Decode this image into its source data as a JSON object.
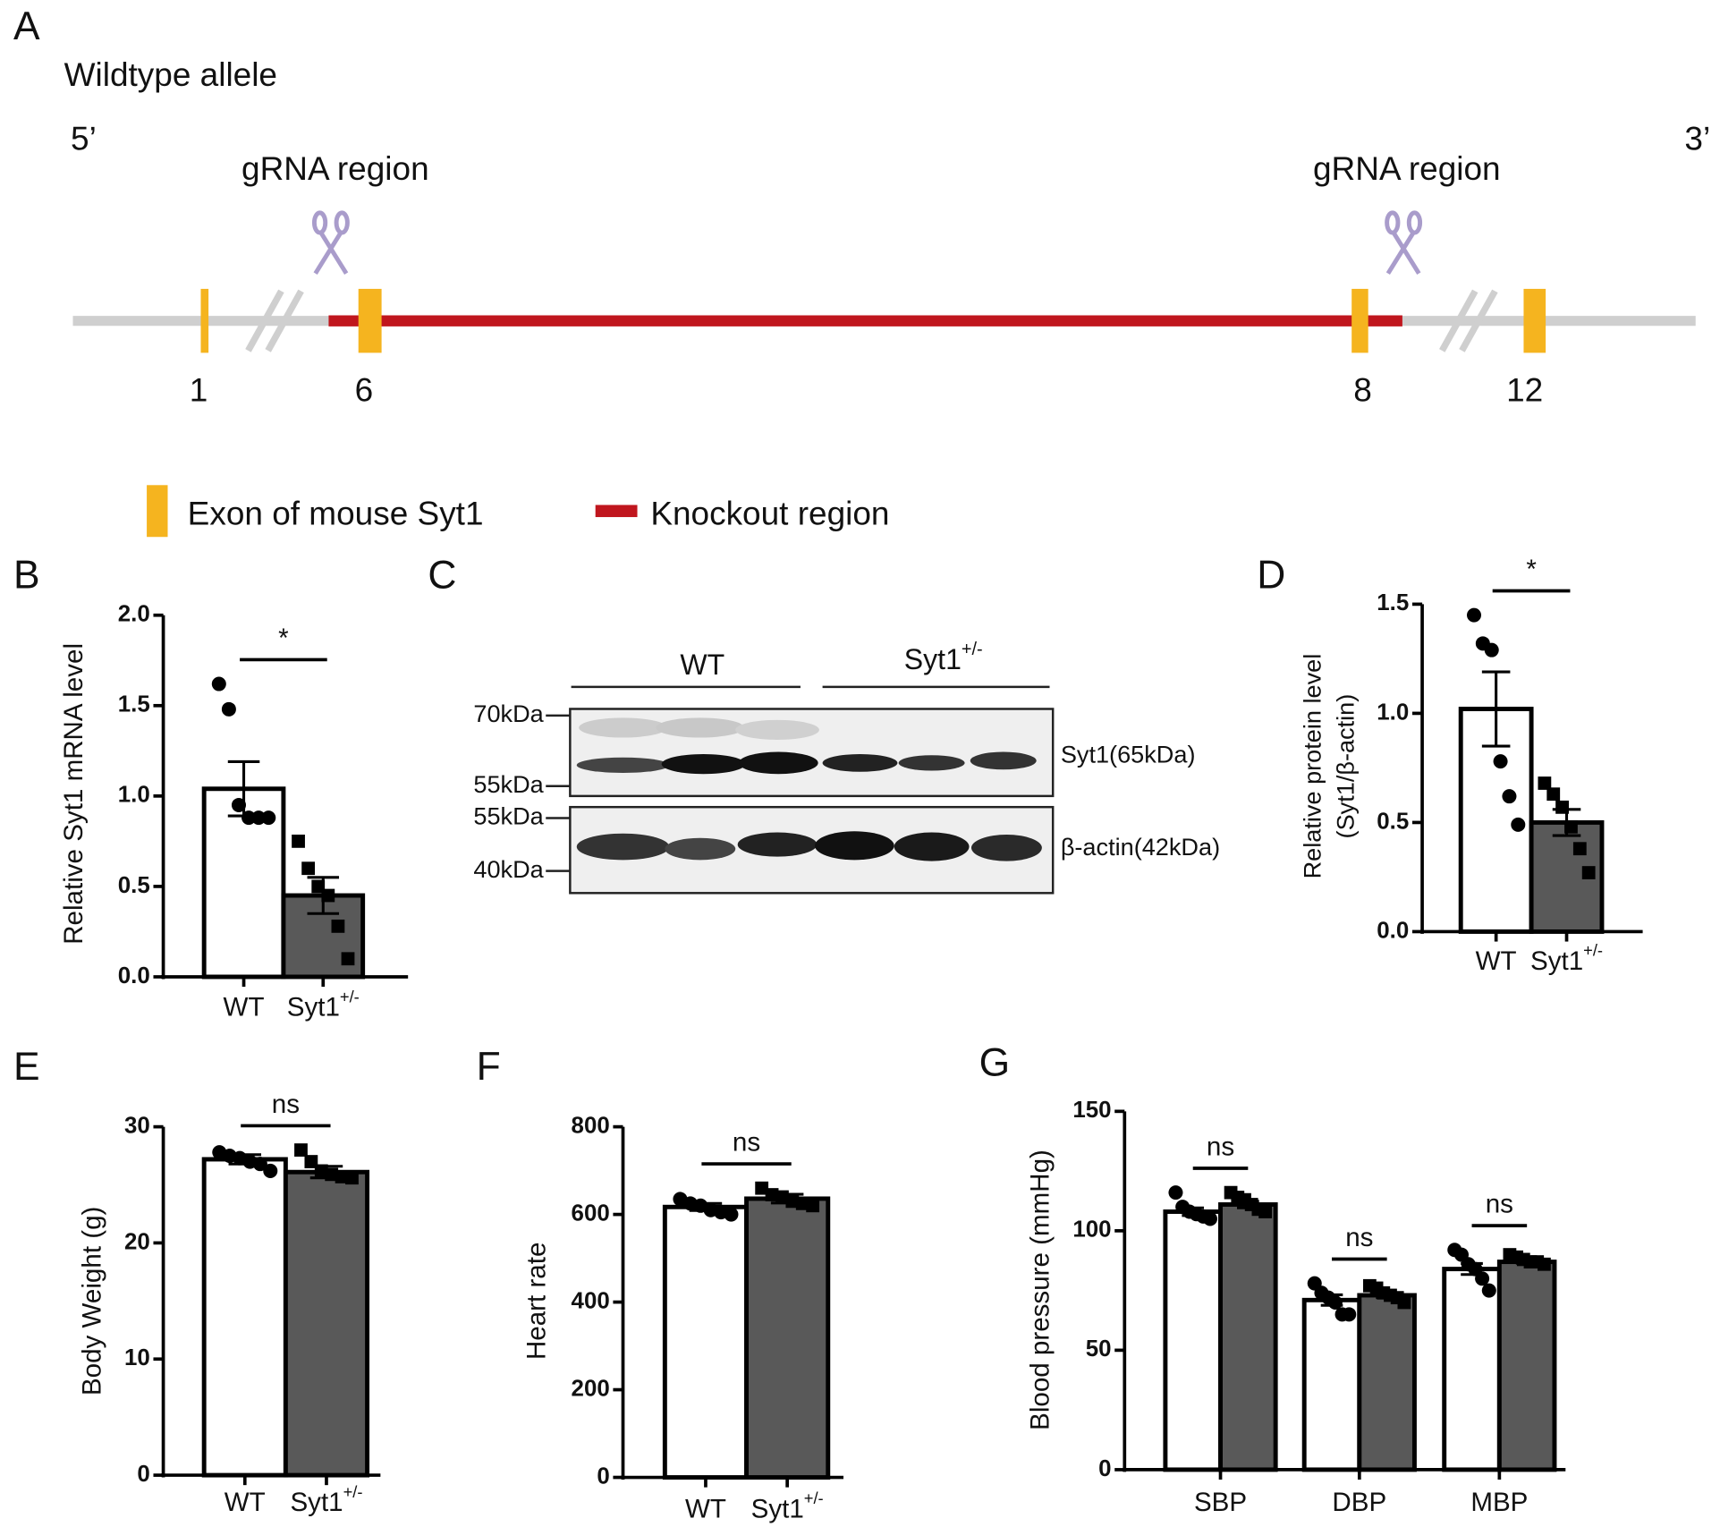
{
  "panel_a": {
    "label": "A",
    "title": "Wildtype allele",
    "end_5": "5’",
    "end_3": "3’",
    "grna_left": "gRNA region",
    "grna_right": "gRNA region",
    "exons": [
      "1",
      "6",
      "8",
      "12"
    ],
    "legend": {
      "exon": "Exon of mouse Syt1",
      "knockout": "Knockout region"
    }
  },
  "panel_c": {
    "label": "C",
    "group_wt": "WT",
    "group_ko": "Syt1+/-",
    "markers_top": [
      "70kDa",
      "55kDa"
    ],
    "markers_bottom": [
      "55kDa",
      "40kDa"
    ],
    "band_top": "Syt1(65kDa)",
    "band_bottom": "β-actin(42kDa)"
  },
  "chart_data": [
    {
      "type": "bar",
      "label": "B",
      "ylabel": "Relative Syt1 mRNA level",
      "categories": [
        "WT",
        "Syt1+/-"
      ],
      "values": [
        1.04,
        0.45
      ],
      "errors": [
        0.15,
        0.1
      ],
      "points": [
        [
          1.62,
          1.48,
          0.95,
          0.88,
          0.88,
          0.88
        ],
        [
          0.75,
          0.6,
          0.5,
          0.45,
          0.28,
          0.1
        ]
      ],
      "colors": [
        "#ffffff",
        "#595959"
      ],
      "markers": [
        "circle",
        "square"
      ],
      "ylim": [
        0,
        2
      ],
      "yticks": [
        {
          "value": 0,
          "label": "0.0"
        },
        {
          "value": 0.5,
          "label": "0.5"
        },
        {
          "value": 1,
          "label": "1.0"
        },
        {
          "value": 1.5,
          "label": "1.5"
        },
        {
          "value": 2,
          "label": "2.0"
        }
      ],
      "annotation": "*"
    },
    {
      "type": "bar",
      "label": "D",
      "ylabel": [
        "Relative protein level",
        "(Syt1/β-actin)"
      ],
      "categories": [
        "WT",
        "Syt1+/-"
      ],
      "values": [
        1.02,
        0.5
      ],
      "errors": [
        0.17,
        0.06
      ],
      "points": [
        [
          1.45,
          1.32,
          1.29,
          0.78,
          0.62,
          0.49
        ],
        [
          0.68,
          0.63,
          0.57,
          0.48,
          0.38,
          0.27
        ]
      ],
      "colors": [
        "#ffffff",
        "#595959"
      ],
      "markers": [
        "circle",
        "square"
      ],
      "ylim": [
        0,
        1.5
      ],
      "yticks": [
        {
          "value": 0,
          "label": "0.0"
        },
        {
          "value": 0.5,
          "label": "0.5"
        },
        {
          "value": 1,
          "label": "1.0"
        },
        {
          "value": 1.5,
          "label": "1.5"
        }
      ],
      "annotation": "*"
    },
    {
      "type": "bar",
      "label": "E",
      "ylabel": "Body Weight (g)",
      "categories": [
        "WT",
        "Syt1+/-"
      ],
      "values": [
        27.2,
        26.1
      ],
      "errors": [
        0.4,
        0.5
      ],
      "points": [
        [
          27.8,
          27.5,
          27.3,
          27.0,
          26.8,
          26.2
        ],
        [
          28.0,
          27.0,
          26.2,
          25.9,
          25.7,
          25.6
        ]
      ],
      "colors": [
        "#ffffff",
        "#595959"
      ],
      "markers": [
        "circle",
        "square"
      ],
      "ylim": [
        0,
        30
      ],
      "yticks": [
        0,
        10,
        20,
        30
      ],
      "annotation": "ns"
    },
    {
      "type": "bar",
      "label": "F",
      "ylabel": "Heart rate",
      "categories": [
        "WT",
        "Syt1+/-"
      ],
      "values": [
        617,
        636
      ],
      "errors": [
        8,
        10
      ],
      "points": [
        [
          635,
          625,
          620,
          610,
          605,
          600
        ],
        [
          660,
          645,
          640,
          630,
          625,
          620
        ]
      ],
      "colors": [
        "#ffffff",
        "#595959"
      ],
      "markers": [
        "circle",
        "square"
      ],
      "ylim": [
        0,
        800
      ],
      "yticks": [
        0,
        200,
        400,
        600,
        800
      ],
      "annotation": "ns"
    },
    {
      "type": "grouped-bar",
      "label": "G",
      "ylabel": "Blood pressure (mmHg)",
      "categories": [
        "SBP",
        "DBP",
        "MBP"
      ],
      "series": [
        {
          "color": "#ffffff",
          "marker": "circle",
          "values": [
            108,
            71,
            84
          ],
          "errors": [
            1.6,
            2.2,
            2.3
          ],
          "points": [
            [
              116,
              110,
              108,
              107,
              106,
              105
            ],
            [
              78,
              74,
              72,
              70,
              65,
              65
            ],
            [
              92,
              90,
              86,
              84,
              80,
              75
            ]
          ]
        },
        {
          "color": "#595959",
          "marker": "square",
          "values": [
            111,
            73,
            87
          ],
          "errors": [
            1.4,
            1.0,
            0.6
          ],
          "points": [
            [
              116,
              114,
              113,
              111,
              109,
              108
            ],
            [
              77,
              76,
              74,
              73,
              72,
              70
            ],
            [
              90,
              89,
              88,
              87,
              87,
              86
            ]
          ]
        }
      ],
      "ylim": [
        0,
        150
      ],
      "yticks": [
        0,
        50,
        100,
        150
      ],
      "annotations": [
        "ns",
        "ns",
        "ns"
      ]
    }
  ]
}
